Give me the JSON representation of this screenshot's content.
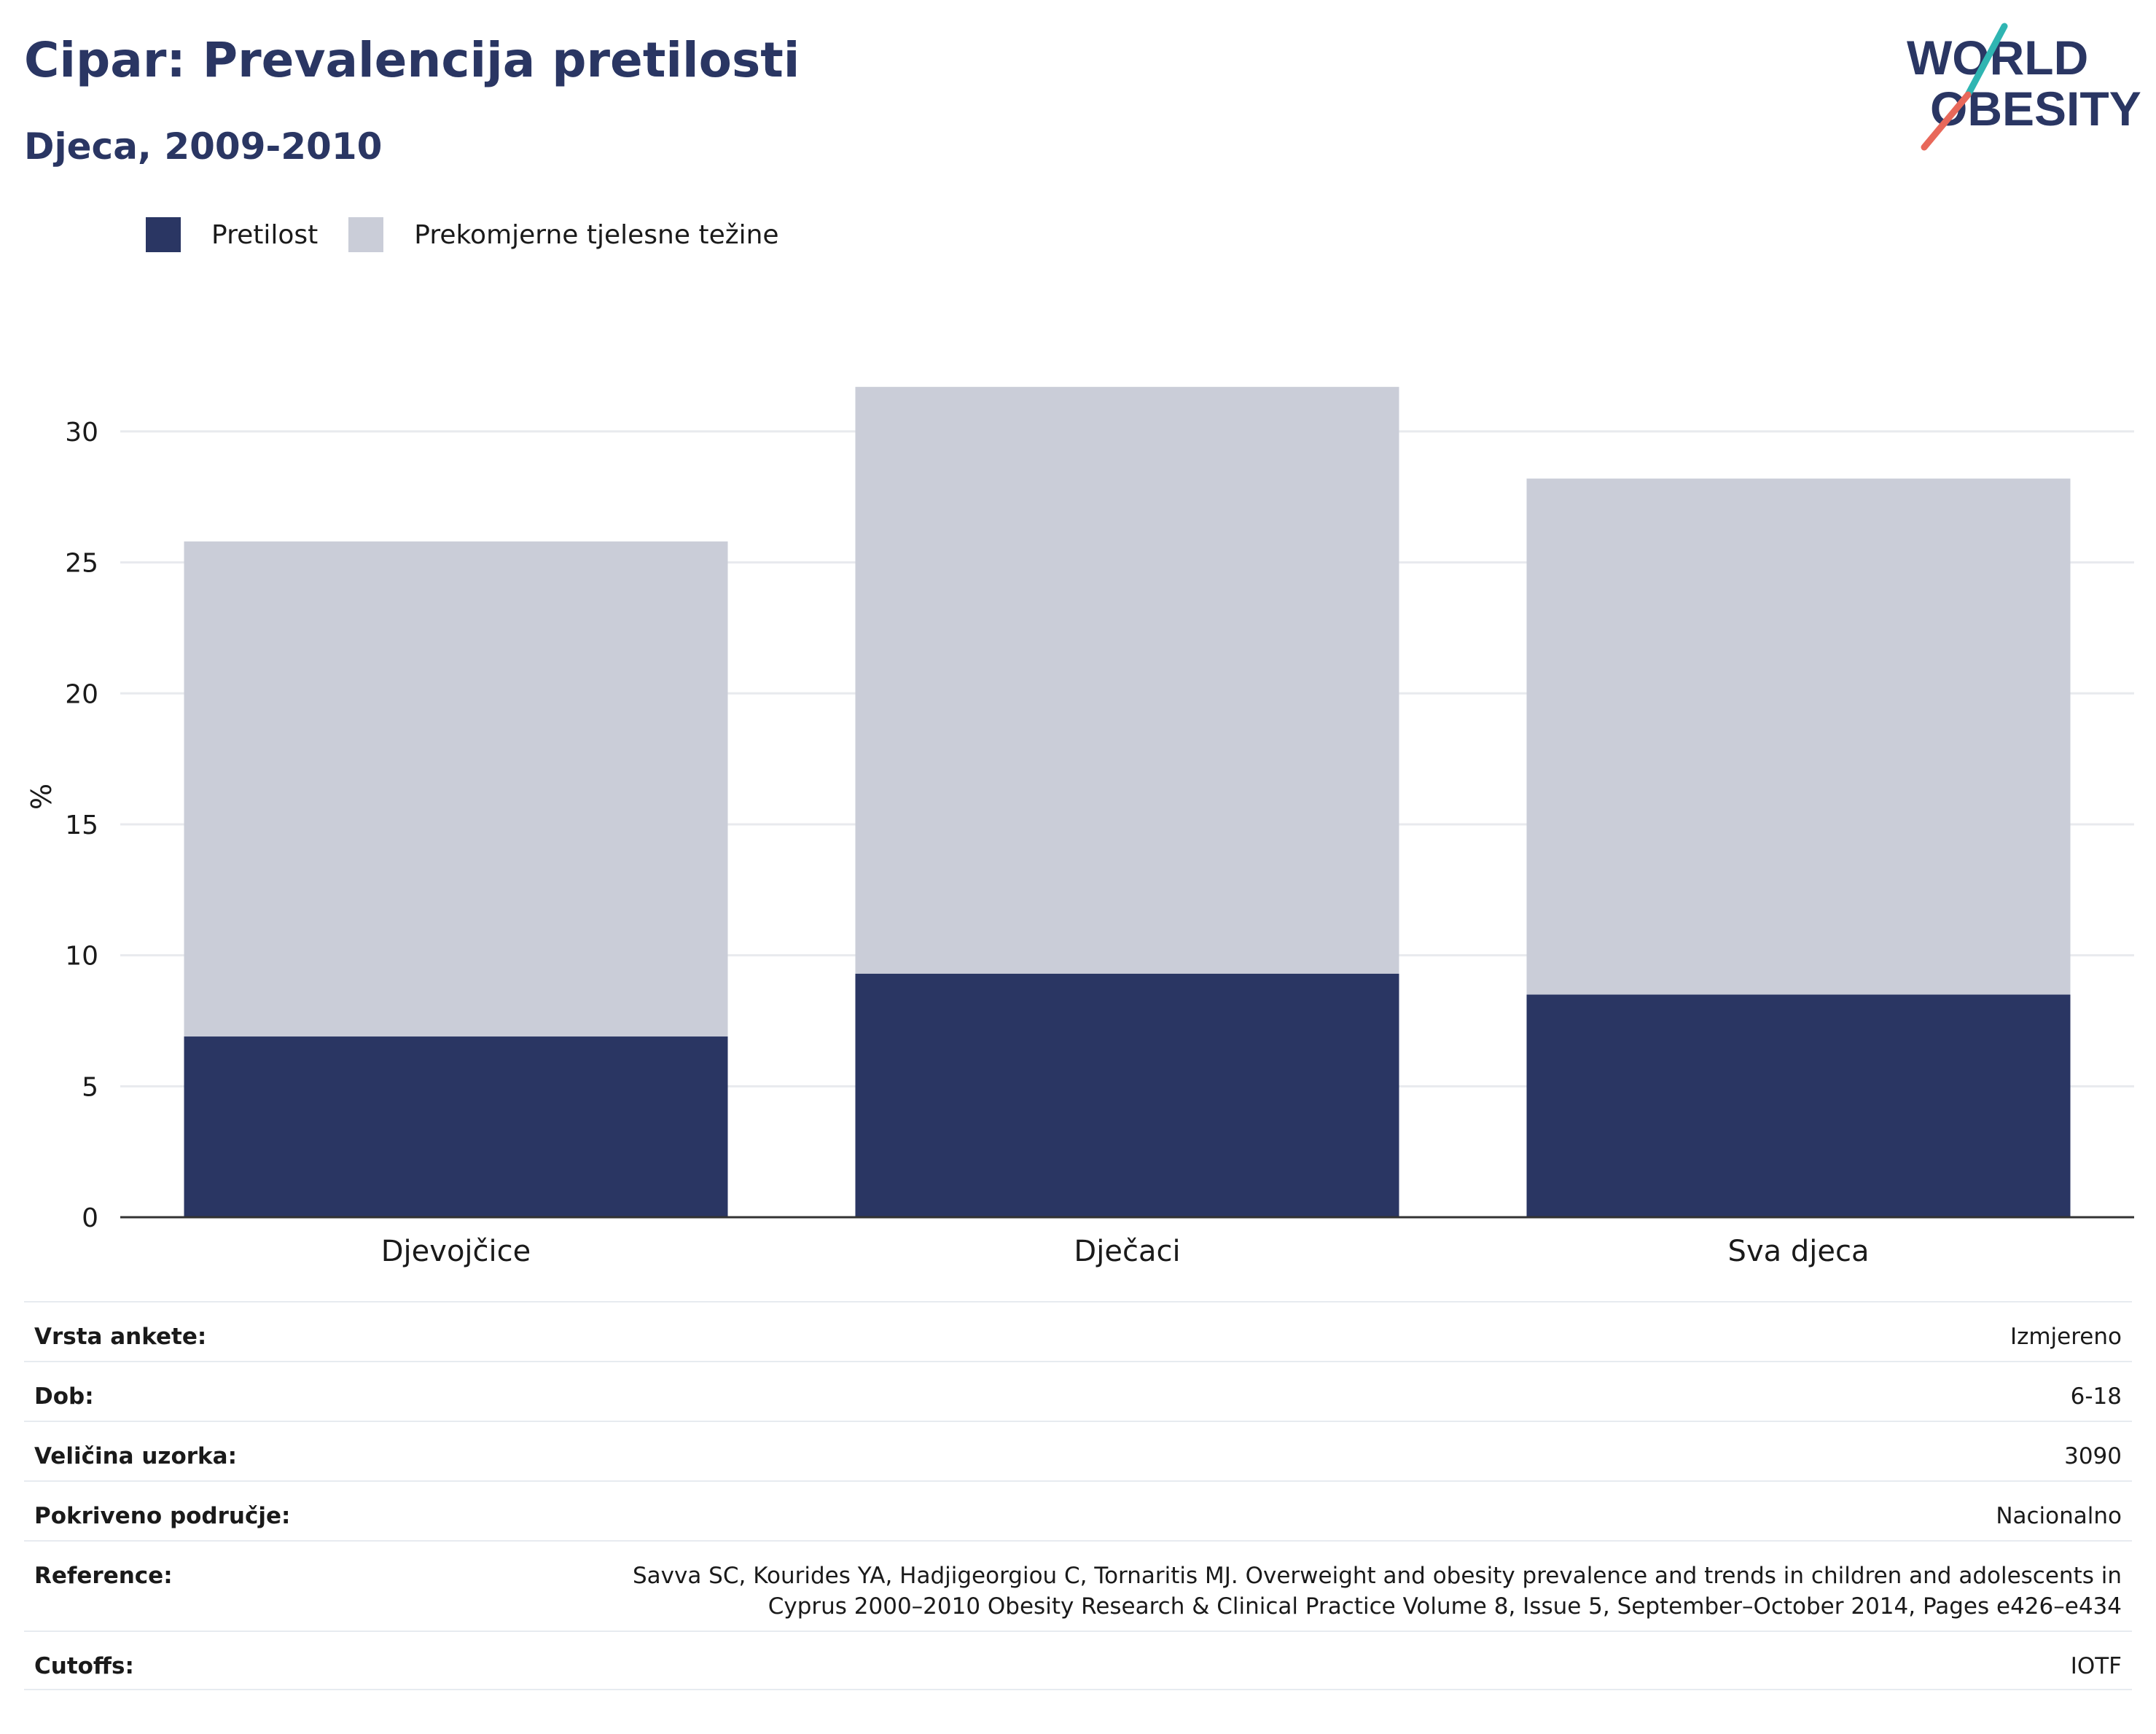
{
  "header": {
    "title": "Cipar: Prevalencija pretilosti",
    "subtitle": "Djeca, 2009-2010"
  },
  "logo": {
    "line1": "WORLD",
    "line2": "OBESITY"
  },
  "legend": [
    {
      "label": "Pretilost",
      "color": "#2a3663"
    },
    {
      "label": "Prekomjerne tjelesne težine",
      "color": "#cacdd8"
    }
  ],
  "chart_data": {
    "type": "bar",
    "stacked": true,
    "categories": [
      "Djevojčice",
      "Dječaci",
      "Sva djeca"
    ],
    "series": [
      {
        "name": "Pretilost",
        "color": "#2a3663",
        "values": [
          6.9,
          9.3,
          8.5
        ]
      },
      {
        "name": "Prekomjerne tjelesne težine",
        "color": "#cacdd8",
        "values": [
          18.9,
          22.4,
          19.7
        ]
      }
    ],
    "ylabel": "%",
    "xlabel": "",
    "ylim": [
      0,
      32
    ],
    "yticks": [
      0,
      5,
      10,
      15,
      20,
      25,
      30
    ],
    "grid": true,
    "legend_position": "top-left"
  },
  "meta": [
    {
      "key": "Vrsta ankete:",
      "value": "Izmjereno"
    },
    {
      "key": "Dob:",
      "value": "6-18"
    },
    {
      "key": "Veličina uzorka:",
      "value": "3090"
    },
    {
      "key": "Pokriveno područje:",
      "value": "Nacionalno"
    },
    {
      "key": "Reference:",
      "value": "Savva SC, Kourides YA, Hadjigeorgiou C, Tornaritis MJ. Overweight and obesity prevalence and trends in children and adolescents in Cyprus 2000–2010 Obesity Research & Clinical Practice Volume 8, Issue 5, September–October 2014, Pages e426–e434"
    },
    {
      "key": "Cutoffs:",
      "value": "IOTF"
    }
  ]
}
